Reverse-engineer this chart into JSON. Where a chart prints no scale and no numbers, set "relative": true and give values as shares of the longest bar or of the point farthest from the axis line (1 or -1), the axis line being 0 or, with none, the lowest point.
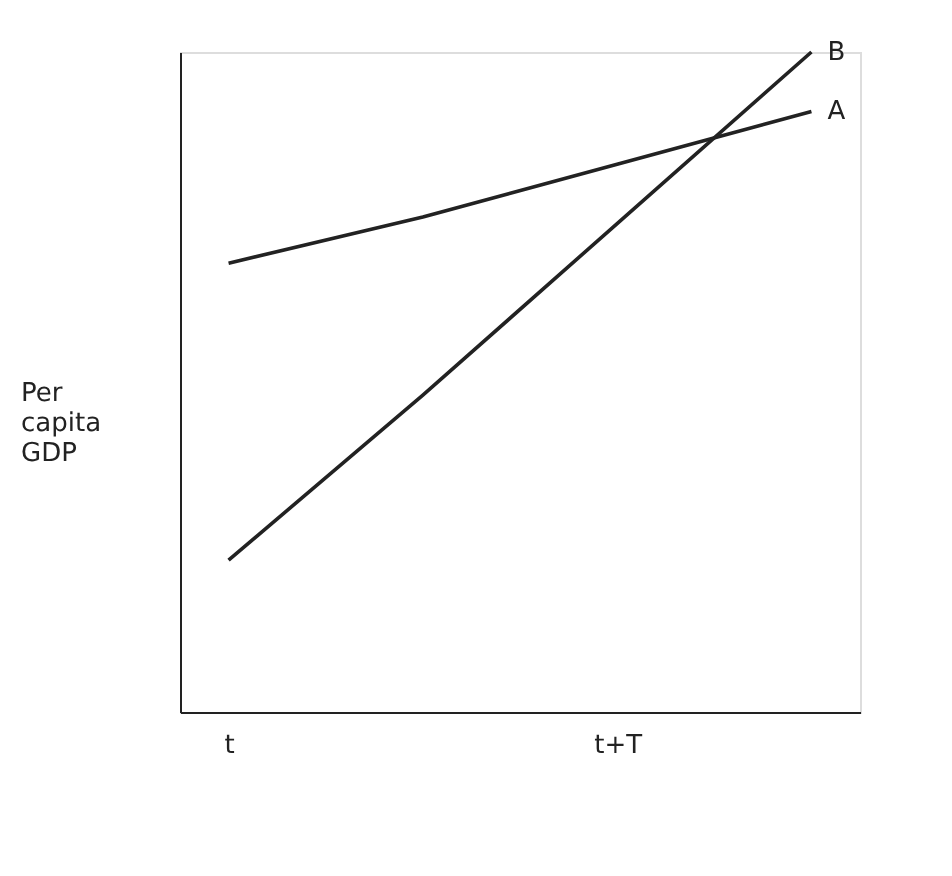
{
  "chart_data": {
    "type": "line",
    "relative": true,
    "ylabel": "Per capita GDP",
    "categories": [
      "t",
      null,
      "t+T",
      null
    ],
    "series": [
      {
        "name": "A",
        "color": "#222222",
        "values": [
          0.68,
          0.75,
          0.83,
          0.91
        ]
      },
      {
        "name": "B",
        "color": "#222222",
        "values": [
          0.23,
          0.48,
          0.74,
          1
        ]
      }
    ],
    "legend": false,
    "grid": false,
    "marker": "none",
    "line_style": "solid"
  }
}
